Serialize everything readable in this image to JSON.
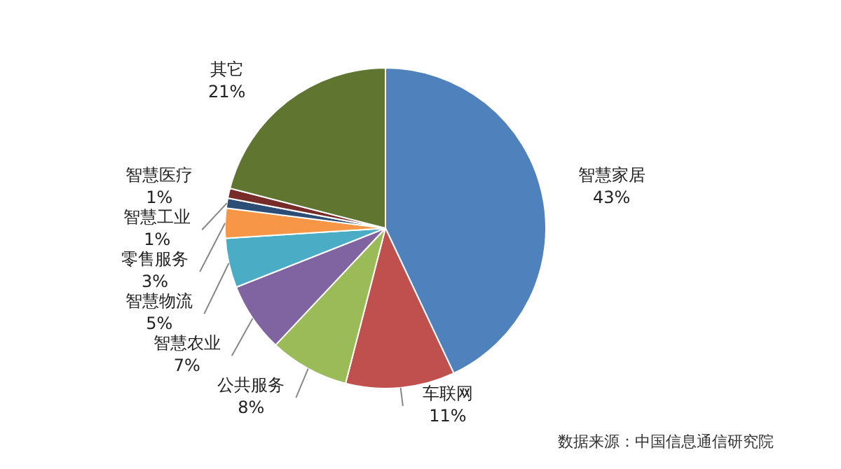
{
  "chart_data": {
    "type": "pie",
    "categories": [
      "智慧家居",
      "车联网",
      "公共服务",
      "智慧农业",
      "智慧物流",
      "零售服务",
      "智慧工业",
      "智慧医疗",
      "其它"
    ],
    "values": [
      43,
      11,
      8,
      7,
      5,
      3,
      1,
      1,
      21
    ],
    "value_labels": [
      "43%",
      "11%",
      "8%",
      "7%",
      "5%",
      "3%",
      "1%",
      "1%",
      "21%"
    ],
    "colors": [
      "#4f81bd",
      "#c0504d",
      "#9bbb59",
      "#8064a2",
      "#4bacc6",
      "#f79646",
      "#2c4d75",
      "#772c2a",
      "#5f7530"
    ],
    "legend": false,
    "annotations": [
      "数据来源：中国信息通信研究院"
    ]
  }
}
